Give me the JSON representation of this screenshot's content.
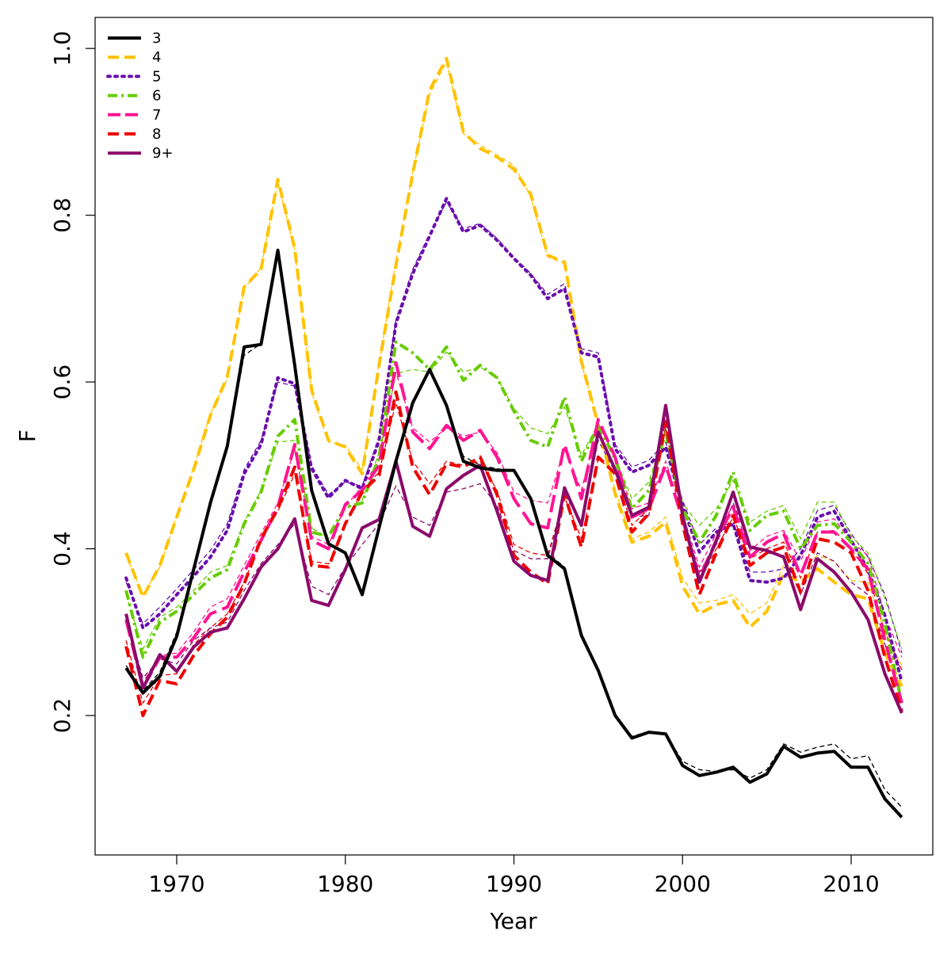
{
  "chart_data": {
    "type": "line",
    "title": "",
    "xlabel": "Year",
    "ylabel": "F",
    "xlim": [
      1967,
      2013
    ],
    "ylim": [
      0.07,
      1.0
    ],
    "xticks": [
      1970,
      1980,
      1990,
      2000,
      2010
    ],
    "yticks": [
      0.2,
      0.4,
      0.6,
      0.8,
      1.0
    ],
    "ytick_labels": [
      "0.2",
      "0.4",
      "0.6",
      "0.8",
      "1.0"
    ],
    "legend_position": "top-left",
    "grid": false,
    "x": [
      1967,
      1968,
      1969,
      1970,
      1971,
      1972,
      1973,
      1974,
      1975,
      1976,
      1977,
      1978,
      1979,
      1980,
      1981,
      1982,
      1983,
      1984,
      1985,
      1986,
      1987,
      1988,
      1989,
      1990,
      1991,
      1992,
      1993,
      1994,
      1995,
      1996,
      1997,
      1998,
      1999,
      2000,
      2001,
      2002,
      2003,
      2004,
      2005,
      2006,
      2007,
      2008,
      2009,
      2010,
      2011,
      2012,
      2013
    ],
    "series": [
      {
        "name": "3",
        "color": "#000000",
        "dash": "solid",
        "values": [
          0.257,
          0.227,
          0.247,
          0.295,
          0.375,
          0.455,
          0.523,
          0.642,
          0.645,
          0.758,
          0.62,
          0.47,
          0.406,
          0.395,
          0.345,
          0.425,
          0.505,
          0.575,
          0.615,
          0.572,
          0.505,
          0.497,
          0.494,
          0.494,
          0.46,
          0.392,
          0.376,
          0.296,
          0.254,
          0.2,
          0.173,
          0.18,
          0.178,
          0.14,
          0.128,
          0.132,
          0.138,
          0.12,
          0.13,
          0.163,
          0.15,
          0.155,
          0.157,
          0.138,
          0.138,
          0.1,
          0.078
        ],
        "retro_values": [
          0.26,
          0.23,
          0.252,
          0.3,
          0.378,
          0.457,
          0.525,
          0.632,
          0.646,
          0.756,
          0.618,
          0.468,
          0.405,
          0.396,
          0.347,
          0.428,
          0.508,
          0.578,
          0.614,
          0.57,
          0.511,
          0.5,
          0.496,
          0.493,
          0.462,
          0.395,
          0.378,
          0.299,
          0.256,
          0.202,
          0.175,
          0.181,
          0.178,
          0.145,
          0.135,
          0.133,
          0.135,
          0.125,
          0.135,
          0.166,
          0.156,
          0.162,
          0.166,
          0.148,
          0.152,
          0.111,
          0.09
        ]
      },
      {
        "name": "4",
        "color": "#FFC200",
        "dash": "dashed",
        "values": [
          0.395,
          0.342,
          0.38,
          0.438,
          0.495,
          0.56,
          0.606,
          0.714,
          0.735,
          0.843,
          0.76,
          0.59,
          0.53,
          0.522,
          0.49,
          0.62,
          0.74,
          0.85,
          0.95,
          0.988,
          0.9,
          0.88,
          0.87,
          0.855,
          0.825,
          0.752,
          0.744,
          0.625,
          0.548,
          0.466,
          0.408,
          0.415,
          0.432,
          0.355,
          0.322,
          0.333,
          0.338,
          0.306,
          0.325,
          0.37,
          0.36,
          0.376,
          0.36,
          0.345,
          0.34,
          0.275,
          0.235
        ],
        "retro_values": [
          0.392,
          0.345,
          0.378,
          0.44,
          0.497,
          0.562,
          0.604,
          0.712,
          0.737,
          0.84,
          0.758,
          0.588,
          0.528,
          0.524,
          0.495,
          0.622,
          0.745,
          0.852,
          0.945,
          0.984,
          0.898,
          0.884,
          0.872,
          0.86,
          0.822,
          0.75,
          0.742,
          0.622,
          0.552,
          0.47,
          0.412,
          0.42,
          0.438,
          0.365,
          0.335,
          0.338,
          0.345,
          0.322,
          0.335,
          0.38,
          0.375,
          0.392,
          0.385,
          0.362,
          0.36,
          0.3,
          0.26
        ]
      },
      {
        "name": "5",
        "color": "#6A0DAD",
        "dash": "dotted",
        "values": [
          0.365,
          0.305,
          0.322,
          0.345,
          0.367,
          0.39,
          0.422,
          0.49,
          0.525,
          0.605,
          0.598,
          0.496,
          0.461,
          0.482,
          0.472,
          0.53,
          0.67,
          0.73,
          0.775,
          0.82,
          0.78,
          0.788,
          0.77,
          0.748,
          0.728,
          0.7,
          0.712,
          0.635,
          0.63,
          0.52,
          0.492,
          0.5,
          0.522,
          0.451,
          0.396,
          0.42,
          0.43,
          0.362,
          0.36,
          0.365,
          0.392,
          0.438,
          0.445,
          0.41,
          0.375,
          0.32,
          0.24
        ],
        "retro_values": [
          0.36,
          0.31,
          0.33,
          0.352,
          0.375,
          0.398,
          0.43,
          0.495,
          0.53,
          0.6,
          0.595,
          0.5,
          0.465,
          0.48,
          0.475,
          0.535,
          0.675,
          0.735,
          0.778,
          0.816,
          0.784,
          0.79,
          0.772,
          0.75,
          0.73,
          0.705,
          0.718,
          0.64,
          0.635,
          0.525,
          0.498,
          0.506,
          0.528,
          0.458,
          0.405,
          0.425,
          0.432,
          0.372,
          0.372,
          0.376,
          0.4,
          0.446,
          0.452,
          0.418,
          0.39,
          0.345,
          0.275
        ]
      },
      {
        "name": "6",
        "color": "#66CC00",
        "dash": "dashdot",
        "values": [
          0.35,
          0.27,
          0.312,
          0.325,
          0.345,
          0.365,
          0.375,
          0.43,
          0.468,
          0.535,
          0.555,
          0.42,
          0.415,
          0.45,
          0.455,
          0.51,
          0.648,
          0.635,
          0.615,
          0.642,
          0.602,
          0.62,
          0.605,
          0.565,
          0.53,
          0.522,
          0.582,
          0.505,
          0.548,
          0.508,
          0.448,
          0.47,
          0.54,
          0.448,
          0.408,
          0.44,
          0.492,
          0.422,
          0.44,
          0.445,
          0.4,
          0.428,
          0.43,
          0.408,
          0.382,
          0.31,
          0.215
        ],
        "retro_values": [
          0.345,
          0.28,
          0.318,
          0.33,
          0.35,
          0.372,
          0.38,
          0.432,
          0.47,
          0.528,
          0.53,
          0.425,
          0.412,
          0.448,
          0.458,
          0.515,
          0.61,
          0.615,
          0.612,
          0.636,
          0.612,
          0.618,
          0.605,
          0.568,
          0.545,
          0.538,
          0.57,
          0.512,
          0.55,
          0.51,
          0.46,
          0.48,
          0.545,
          0.455,
          0.428,
          0.448,
          0.482,
          0.432,
          0.445,
          0.452,
          0.412,
          0.456,
          0.456,
          0.415,
          0.395,
          0.34,
          0.28
        ]
      },
      {
        "name": "7",
        "color": "#FF1493",
        "dash": "longdash",
        "values": [
          0.315,
          0.233,
          0.27,
          0.27,
          0.293,
          0.322,
          0.33,
          0.372,
          0.41,
          0.45,
          0.525,
          0.41,
          0.4,
          0.453,
          0.47,
          0.5,
          0.623,
          0.54,
          0.52,
          0.548,
          0.53,
          0.542,
          0.51,
          0.46,
          0.43,
          0.425,
          0.525,
          0.46,
          0.555,
          0.51,
          0.438,
          0.448,
          0.5,
          0.435,
          0.365,
          0.41,
          0.45,
          0.39,
          0.408,
          0.418,
          0.368,
          0.42,
          0.42,
          0.4,
          0.375,
          0.29,
          0.215
        ],
        "retro_values": [
          0.318,
          0.24,
          0.272,
          0.275,
          0.3,
          0.33,
          0.34,
          0.38,
          0.418,
          0.455,
          0.52,
          0.415,
          0.405,
          0.45,
          0.475,
          0.505,
          0.612,
          0.545,
          0.528,
          0.545,
          0.535,
          0.54,
          0.515,
          0.468,
          0.458,
          0.455,
          0.52,
          0.47,
          0.55,
          0.512,
          0.448,
          0.455,
          0.505,
          0.442,
          0.378,
          0.418,
          0.452,
          0.398,
          0.415,
          0.422,
          0.385,
          0.432,
          0.436,
          0.408,
          0.392,
          0.32,
          0.27
        ]
      },
      {
        "name": "8",
        "color": "#EE0000",
        "dash": "dashed",
        "values": [
          0.283,
          0.2,
          0.242,
          0.238,
          0.272,
          0.298,
          0.318,
          0.358,
          0.412,
          0.448,
          0.498,
          0.38,
          0.378,
          0.43,
          0.468,
          0.488,
          0.588,
          0.498,
          0.465,
          0.502,
          0.498,
          0.51,
          0.465,
          0.392,
          0.372,
          0.358,
          0.465,
          0.402,
          0.51,
          0.49,
          0.42,
          0.442,
          0.552,
          0.43,
          0.345,
          0.395,
          0.44,
          0.38,
          0.395,
          0.402,
          0.348,
          0.412,
          0.408,
          0.395,
          0.35,
          0.27,
          0.205
        ],
        "retro_values": [
          0.29,
          0.215,
          0.248,
          0.25,
          0.285,
          0.305,
          0.322,
          0.36,
          0.41,
          0.445,
          0.49,
          0.385,
          0.382,
          0.428,
          0.47,
          0.492,
          0.575,
          0.505,
          0.478,
          0.505,
          0.5,
          0.505,
          0.47,
          0.405,
          0.395,
          0.392,
          0.462,
          0.412,
          0.508,
          0.492,
          0.428,
          0.448,
          0.545,
          0.435,
          0.36,
          0.4,
          0.438,
          0.388,
          0.4,
          0.408,
          0.365,
          0.42,
          0.422,
          0.4,
          0.37,
          0.3,
          0.255
        ]
      },
      {
        "name": "9+",
        "color": "#8B0A6B",
        "dash": "solid",
        "values": [
          0.322,
          0.233,
          0.273,
          0.253,
          0.282,
          0.3,
          0.305,
          0.34,
          0.378,
          0.4,
          0.436,
          0.338,
          0.332,
          0.375,
          0.425,
          0.435,
          0.505,
          0.427,
          0.415,
          0.472,
          0.488,
          0.5,
          0.445,
          0.385,
          0.368,
          0.362,
          0.473,
          0.428,
          0.54,
          0.495,
          0.44,
          0.45,
          0.572,
          0.44,
          0.36,
          0.41,
          0.468,
          0.402,
          0.398,
          0.39,
          0.327,
          0.388,
          0.372,
          0.348,
          0.315,
          0.25,
          0.203
        ],
        "retro_values": [
          0.315,
          0.245,
          0.268,
          0.262,
          0.29,
          0.305,
          0.312,
          0.35,
          0.382,
          0.405,
          0.43,
          0.355,
          0.345,
          0.378,
          0.405,
          0.43,
          0.475,
          0.438,
          0.428,
          0.468,
          0.472,
          0.478,
          0.452,
          0.398,
          0.388,
          0.388,
          0.465,
          0.432,
          0.53,
          0.492,
          0.438,
          0.44,
          0.555,
          0.438,
          0.372,
          0.405,
          0.455,
          0.405,
          0.395,
          0.392,
          0.345,
          0.395,
          0.385,
          0.36,
          0.345,
          0.285,
          0.255
        ]
      }
    ]
  }
}
